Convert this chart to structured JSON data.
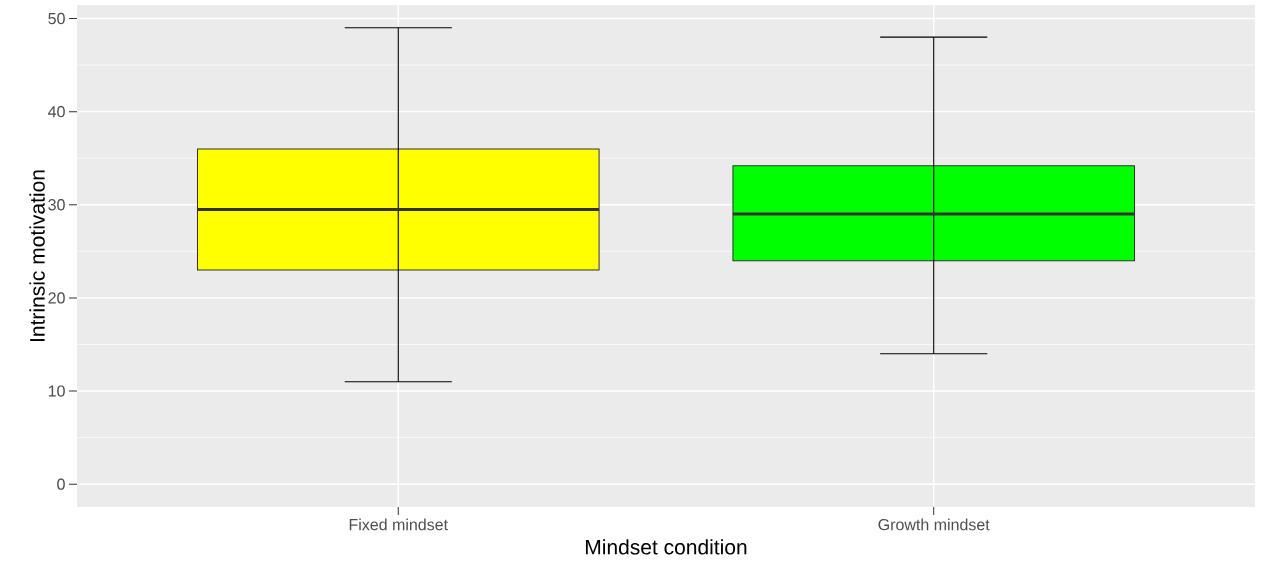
{
  "chart_data": {
    "type": "box",
    "xlabel": "Mindset condition",
    "ylabel": "Intrinsic motivation",
    "categories": [
      "Fixed mindset",
      "Growth mindset"
    ],
    "boxes": [
      {
        "low": 11,
        "q1": 23,
        "median": 29.5,
        "q3": 36,
        "high": 49
      },
      {
        "low": 14,
        "q1": 24,
        "median": 29,
        "q3": 34.2,
        "high": 48
      }
    ],
    "colors": [
      "#ffff00",
      "#00ff00"
    ],
    "ylim": [
      -2.45,
      51.45
    ],
    "yticks": [
      0,
      10,
      20,
      30,
      40,
      50
    ],
    "grid": true
  }
}
